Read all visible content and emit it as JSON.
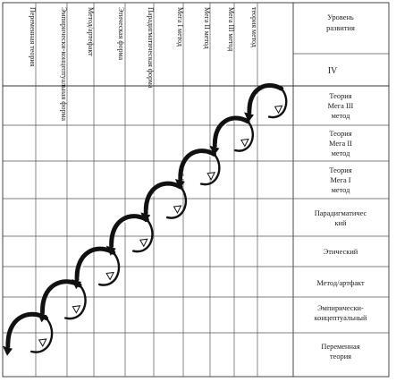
{
  "diagram": {
    "column_headers": [
      "Переменная теория",
      "Эмпирически-концептуальная форма",
      "Метод/артефакт",
      "Этическая форма",
      "Парадигматическая форма",
      "Мега I метод",
      "Мега II метод",
      "Мега III метод",
      "теория метод"
    ],
    "header_right": {
      "title_line1": "Уровень",
      "title_line2": "развития",
      "roman": "IV"
    },
    "row_labels": [
      [
        "Теория",
        "Мега III",
        "метод"
      ],
      [
        "Теория",
        "Мега II",
        "метод"
      ],
      [
        "Теория",
        "Мега I",
        "метод"
      ],
      [
        "Парадигматичес",
        "кий"
      ],
      [
        "Этический"
      ],
      [
        "Метод/артфакт"
      ],
      [
        "Эмпирически-",
        "концептуальный"
      ],
      [
        "Переменная",
        "теория"
      ]
    ],
    "spiral": {
      "turns": 8,
      "direction": "ascending-diagonal",
      "arrow_style": "dashed-hollow-heads"
    },
    "colors": {
      "ink": "#111111",
      "grid": "#333333",
      "background": "#ffffff"
    }
  }
}
